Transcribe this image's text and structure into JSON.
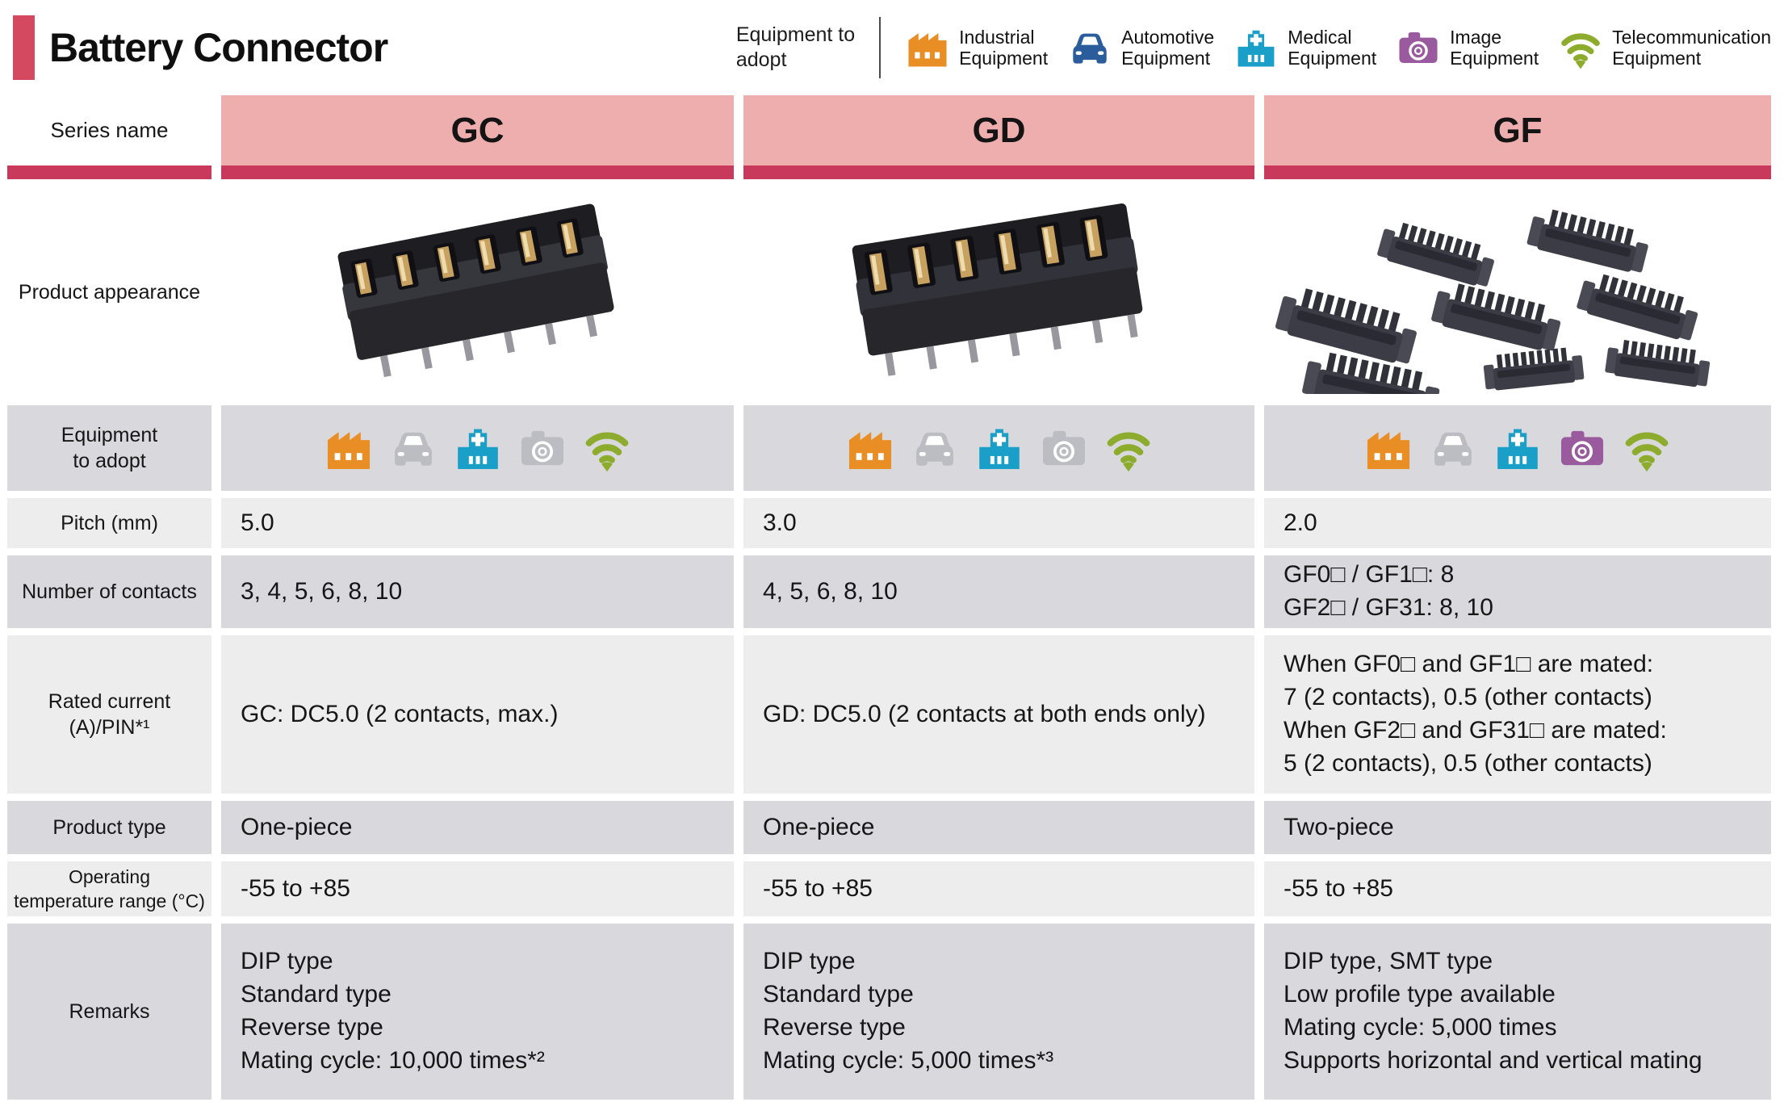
{
  "header": {
    "title": "Battery Connector",
    "adopt_caption": "Equipment to\nadopt",
    "legend": [
      {
        "icon": "factory-icon",
        "label": "Industrial\nEquipment"
      },
      {
        "icon": "car-icon",
        "label": "Automotive\nEquipment"
      },
      {
        "icon": "hospital-icon",
        "label": "Medical\nEquipment"
      },
      {
        "icon": "camera-icon",
        "label": "Image\nEquipment"
      },
      {
        "icon": "wifi-icon",
        "label": "Telecommunication\nEquipment"
      }
    ]
  },
  "table": {
    "series_label": "Series name",
    "series": [
      "GC",
      "GD",
      "GF"
    ],
    "appearance_label": "Product appearance",
    "equipment_label": "Equipment\nto adopt",
    "equipment_matrix": [
      {
        "industrial": true,
        "automotive": false,
        "medical": true,
        "image": false,
        "telecom": true
      },
      {
        "industrial": true,
        "automotive": false,
        "medical": true,
        "image": false,
        "telecom": true
      },
      {
        "industrial": true,
        "automotive": false,
        "medical": true,
        "image": true,
        "telecom": true
      }
    ],
    "pitch_label": "Pitch (mm)",
    "pitch": [
      "5.0",
      "3.0",
      "2.0"
    ],
    "contacts_label": "Number of contacts",
    "contacts": [
      "3, 4, 5, 6, 8, 10",
      "4, 5, 6, 8, 10",
      "GF0□ / GF1□: 8\nGF2□ / GF31: 8, 10"
    ],
    "rated_label": "Rated current\n(A)/PIN*¹",
    "rated": [
      "GC: DC5.0 (2 contacts, max.)",
      "GD: DC5.0 (2 contacts at both ends only)",
      "When GF0□ and GF1□ are mated:\n7 (2 contacts), 0.5 (other contacts)\nWhen GF2□ and GF31□ are mated:\n5 (2 contacts), 0.5 (other contacts)"
    ],
    "ptype_label": "Product type",
    "ptype": [
      "One-piece",
      "One-piece",
      "Two-piece"
    ],
    "temp_label": "Operating\ntemperature range (°C)",
    "temp": [
      "-55 to +85",
      "-55 to +85",
      "-55 to +85"
    ],
    "remarks_label": "Remarks",
    "remarks": [
      "DIP type\nStandard type\nReverse type\nMating cycle: 10,000 times*²",
      "DIP type\nStandard type\nReverse type\nMating cycle: 5,000 times*³",
      "DIP type, SMT type\nLow profile type available\nMating cycle: 5,000 times\nSupports horizontal and vertical mating"
    ]
  },
  "colors": {
    "accent": "#d4495f",
    "series_bg": "#efaeae",
    "series_bar": "#c8395b",
    "row_dark": "#d8d8dd",
    "row_light": "#ededee",
    "industrial": "#e88e24",
    "automotive": "#2b5d9c",
    "medical": "#1a9fc9",
    "image": "#9a5b9e",
    "telecom": "#8dac2d",
    "inactive": "#bcbcc3"
  }
}
